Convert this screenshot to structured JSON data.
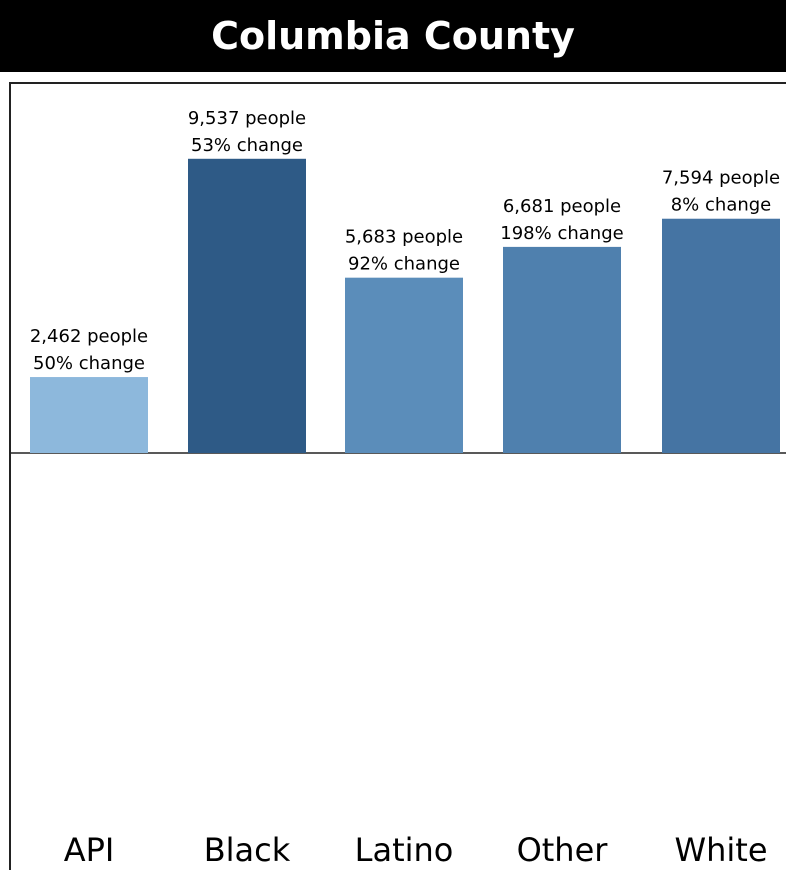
{
  "title": "Columbia County",
  "chart_data": {
    "type": "bar",
    "categories": [
      "API",
      "Black",
      "Latino",
      "Other",
      "White"
    ],
    "values": [
      2462,
      9537,
      5683,
      6681,
      7594
    ],
    "value_labels": [
      "2,462 people",
      "9,537 people",
      "5,683 people",
      "6,681 people",
      "7,594 people"
    ],
    "change_labels": [
      "50% change",
      "53% change",
      "92% change",
      "198% change",
      "8% change"
    ],
    "colors": [
      "#8db8dc",
      "#2e5a86",
      "#5b8dba",
      "#4f80ae",
      "#4574a3"
    ],
    "title": "Columbia County",
    "xlabel": "",
    "ylabel": "",
    "ylim": [
      0,
      12000
    ],
    "grid": false
  }
}
